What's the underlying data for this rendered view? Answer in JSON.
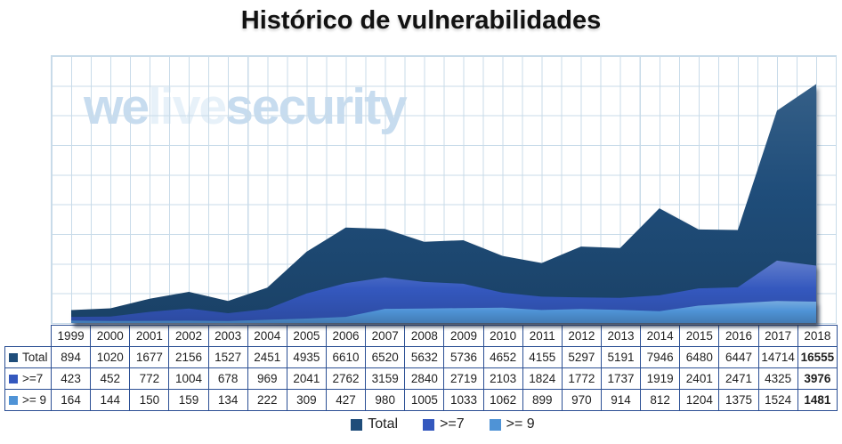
{
  "title": "Histórico de vulnerabilidades",
  "watermark": {
    "part1": "we",
    "part2": "live",
    "part3": "security"
  },
  "chart_data": {
    "type": "area",
    "title": "Histórico de vulnerabilidades",
    "categories": [
      "1999",
      "2000",
      "2001",
      "2002",
      "2003",
      "2004",
      "2005",
      "2006",
      "2007",
      "2008",
      "2009",
      "2010",
      "2011",
      "2012",
      "2013",
      "2014",
      "2015",
      "2016",
      "2017",
      "2018"
    ],
    "series": [
      {
        "name": "Total",
        "color": "#1f4d7a",
        "values": [
          894,
          1020,
          1677,
          2156,
          1527,
          2451,
          4935,
          6610,
          6520,
          5632,
          5736,
          4652,
          4155,
          5297,
          5191,
          7946,
          6480,
          6447,
          14714,
          16555
        ]
      },
      {
        "name": ">=7",
        "color": "#3458be",
        "values": [
          423,
          452,
          772,
          1004,
          678,
          969,
          2041,
          2762,
          3159,
          2840,
          2719,
          2103,
          1824,
          1772,
          1737,
          1919,
          2401,
          2471,
          4325,
          3976
        ]
      },
      {
        "name": ">= 9",
        "color": "#4f93d6",
        "values": [
          164,
          144,
          150,
          159,
          134,
          222,
          309,
          427,
          980,
          1005,
          1033,
          1062,
          899,
          970,
          914,
          812,
          1204,
          1375,
          1524,
          1481
        ]
      }
    ],
    "ylim": [
      0,
      18500
    ],
    "xlabel": "",
    "ylabel": "",
    "grid": true,
    "legend_position": "bottom",
    "data_table_shown": true,
    "last_column_bold": true
  },
  "colors": {
    "grid": "#c8dbe9",
    "table_border": "#2b4f94",
    "text": "#1f1f1f",
    "watermark_strong": "#c7dcef",
    "watermark_light": "#e7f1f9"
  }
}
